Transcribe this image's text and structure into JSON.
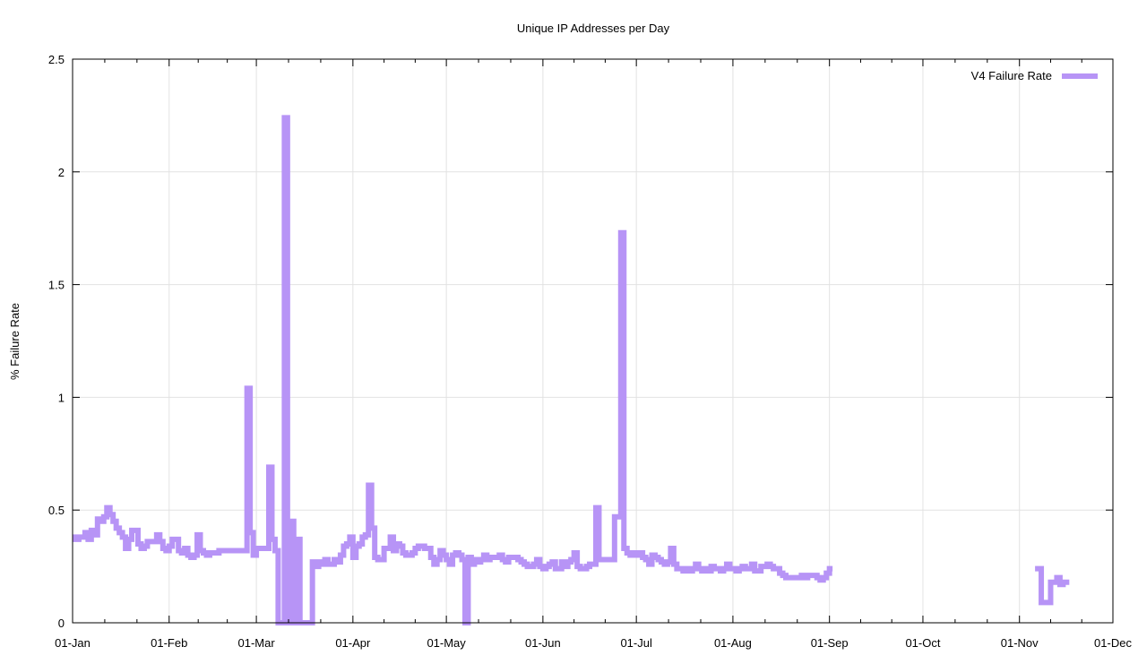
{
  "chart_data": {
    "type": "line",
    "title": "Unique IP Addresses per Day",
    "xlabel": "",
    "ylabel": "% Failure Rate",
    "ylim": [
      0,
      2.5
    ],
    "yticks": [
      "0",
      "0.5",
      "1",
      "1.5",
      "2",
      "2.5"
    ],
    "xticks": [
      "01-Jan",
      "01-Feb",
      "01-Mar",
      "01-Apr",
      "01-May",
      "01-Jun",
      "01-Jul",
      "01-Aug",
      "01-Sep",
      "01-Oct",
      "01-Nov",
      "01-Dec"
    ],
    "xlim": [
      "01-Jan",
      "01-Dec"
    ],
    "grid": true,
    "legend": "top-right",
    "line_style": "steps",
    "series": [
      {
        "name": "V4 Failure Rate",
        "color": "#b794f6",
        "segments": [
          {
            "start": "01-Jan",
            "values": [
              0.38,
              0.37,
              0.38,
              0.38,
              0.4,
              0.37,
              0.41,
              0.39,
              0.46,
              0.45,
              0.47,
              0.51,
              0.48,
              0.45,
              0.42,
              0.4,
              0.38,
              0.33,
              0.37,
              0.41,
              0.41,
              0.35,
              0.33,
              0.34,
              0.36,
              0.36,
              0.36,
              0.39,
              0.36,
              0.33,
              0.32,
              0.34,
              0.37,
              0.37,
              0.32,
              0.31,
              0.33,
              0.3,
              0.29,
              0.3,
              0.39,
              0.32,
              0.31,
              0.3,
              0.31,
              0.31,
              0.31,
              0.32,
              0.32,
              0.32,
              0.32,
              0.32,
              0.32,
              0.32,
              0.32,
              0.32,
              1.04,
              0.4,
              0.3,
              0.33,
              0.33,
              0.33,
              0.33,
              0.69,
              0.37,
              0.32,
              0.0,
              0.0,
              2.24,
              0.0,
              0.45,
              0.0,
              0.37,
              0.0,
              0.0,
              0.0,
              0.0,
              0.27,
              0.25,
              0.27,
              0.26,
              0.28,
              0.26,
              0.26,
              0.28,
              0.27,
              0.3,
              0.34,
              0.35,
              0.38,
              0.29,
              0.34,
              0.35,
              0.38,
              0.39,
              0.61,
              0.42,
              0.29,
              0.28,
              0.28,
              0.33,
              0.33,
              0.38,
              0.32,
              0.35,
              0.34,
              0.31,
              0.3,
              0.3,
              0.31,
              0.33,
              0.34,
              0.34,
              0.33,
              0.33,
              0.29,
              0.26,
              0.28,
              0.32,
              0.3,
              0.28,
              0.26,
              0.3,
              0.31,
              0.3,
              0.28,
              0.0,
              0.29,
              0.26,
              0.28,
              0.27,
              0.28,
              0.3,
              0.28,
              0.29,
              0.29,
              0.29,
              0.3,
              0.28,
              0.27,
              0.29,
              0.29,
              0.29,
              0.28,
              0.27,
              0.26,
              0.25,
              0.25,
              0.26,
              0.28,
              0.25,
              0.24,
              0.25,
              0.26,
              0.27,
              0.24,
              0.24,
              0.27,
              0.25,
              0.27,
              0.28,
              0.31,
              0.25,
              0.24,
              0.24,
              0.25,
              0.26,
              0.26,
              0.51,
              0.28,
              0.28,
              0.28,
              0.28,
              0.28,
              0.47,
              0.47,
              1.73,
              0.33,
              0.31,
              0.3,
              0.31,
              0.3,
              0.31,
              0.29,
              0.28,
              0.26,
              0.3,
              0.29,
              0.28,
              0.27,
              0.26,
              0.27,
              0.33,
              0.26,
              0.24,
              0.24,
              0.23,
              0.24,
              0.23,
              0.24,
              0.26,
              0.24,
              0.23,
              0.24,
              0.23,
              0.25,
              0.24,
              0.24,
              0.23,
              0.24,
              0.26,
              0.24,
              0.24,
              0.23,
              0.24,
              0.25,
              0.24,
              0.24,
              0.26,
              0.23,
              0.23,
              0.25,
              0.25,
              0.26,
              0.25,
              0.24,
              0.24,
              0.22,
              0.21,
              0.2,
              0.2,
              0.2,
              0.2,
              0.2,
              0.21,
              0.2,
              0.21,
              0.21,
              0.21,
              0.2,
              0.19,
              0.2,
              0.22,
              0.24
            ]
          },
          {
            "start": "06-Nov",
            "values": [
              0.24,
              0.24,
              0.09,
              0.09,
              0.09,
              0.18,
              0.18,
              0.2,
              0.17,
              0.18,
              0.18
            ]
          }
        ]
      }
    ]
  }
}
